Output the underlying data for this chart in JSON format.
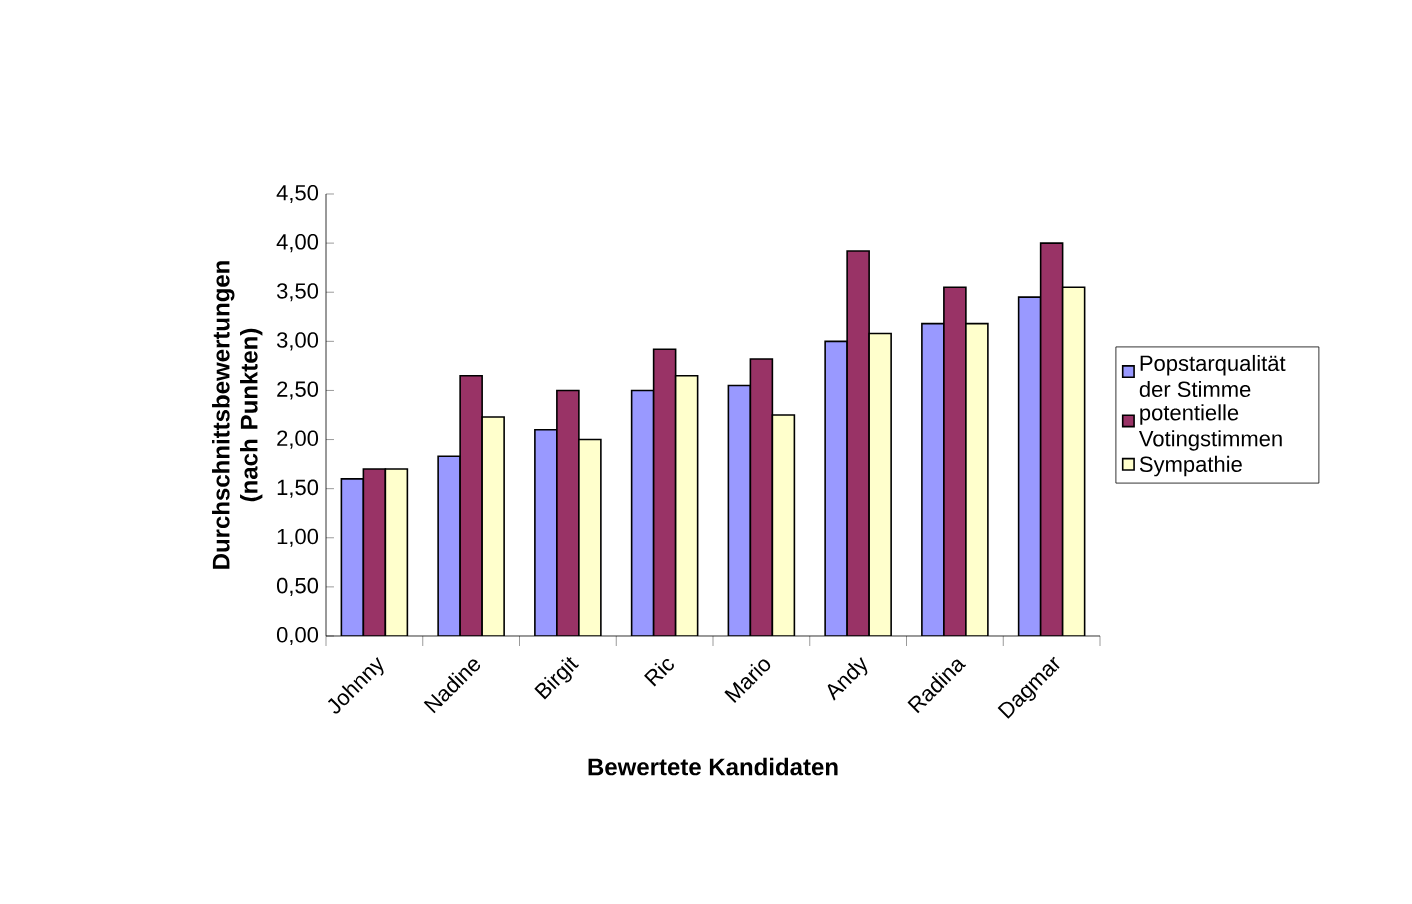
{
  "chart_data": {
    "type": "bar",
    "xlabel": "Bewertete Kandidaten",
    "ylabel": "Durchschnittsbewertungen (nach Punkten)",
    "categories": [
      "Johnny",
      "Nadine",
      "Birgit",
      "Ric",
      "Mario",
      "Andy",
      "Radina",
      "Dagmar"
    ],
    "series": [
      {
        "name": "Popstarqualität der Stimme",
        "color": "#9999ff",
        "values": [
          1.6,
          1.83,
          2.1,
          2.5,
          2.55,
          3.0,
          3.18,
          3.45
        ]
      },
      {
        "name": "potentielle Votingstimmen",
        "color": "#993366",
        "values": [
          1.7,
          2.65,
          2.5,
          2.92,
          2.82,
          3.92,
          3.55,
          4.0
        ]
      },
      {
        "name": "Sympathie",
        "color": "#ffffcc",
        "values": [
          1.7,
          2.23,
          2.0,
          2.65,
          2.25,
          3.08,
          3.18,
          3.55
        ]
      }
    ],
    "ylim": [
      0,
      4.5
    ],
    "yticks": [
      {
        "value": 0,
        "label": "0,00"
      },
      {
        "value": 0.5,
        "label": "0,50"
      },
      {
        "value": 1,
        "label": "1,00"
      },
      {
        "value": 1.5,
        "label": "1,50"
      },
      {
        "value": 2,
        "label": "2,00"
      },
      {
        "value": 2.5,
        "label": "2,50"
      },
      {
        "value": 3,
        "label": "3,00"
      },
      {
        "value": 3.5,
        "label": "3,50"
      },
      {
        "value": 4,
        "label": "4,00"
      },
      {
        "value": 4.5,
        "label": "4,50"
      }
    ],
    "legend": "right",
    "grid": false
  }
}
